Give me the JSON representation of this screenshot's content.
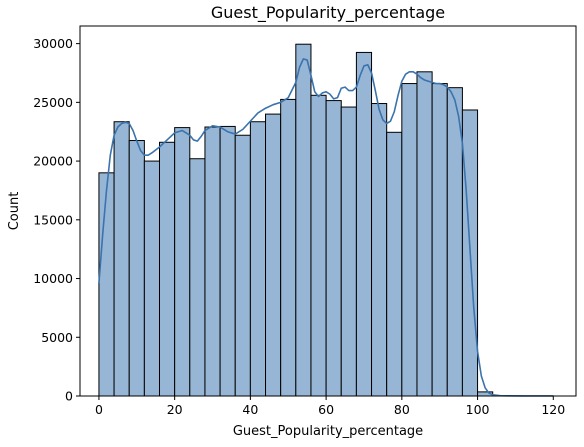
{
  "chart_data": {
    "type": "histogram",
    "title": "Guest_Popularity_percentage",
    "xlabel": "Guest_Popularity_percentage",
    "ylabel": "Count",
    "xlim": [
      -5,
      126
    ],
    "ylim": [
      0,
      31500
    ],
    "xticks": [
      0,
      20,
      40,
      60,
      80,
      100,
      120
    ],
    "xtick_labels": [
      "0",
      "20",
      "40",
      "60",
      "80",
      "100",
      "120"
    ],
    "yticks": [
      0,
      5000,
      10000,
      15000,
      20000,
      25000,
      30000
    ],
    "ytick_labels": [
      "0",
      "5000",
      "10000",
      "15000",
      "20000",
      "25000",
      "30000"
    ],
    "grid": false,
    "colors": {
      "bar_fill": "#97b6d6",
      "bar_edge": "#000000",
      "kde_line": "#3a73ad"
    },
    "bins": [
      {
        "x0": 0,
        "x1": 4,
        "count": 19000
      },
      {
        "x0": 4,
        "x1": 8,
        "count": 23350
      },
      {
        "x0": 8,
        "x1": 12,
        "count": 21750
      },
      {
        "x0": 12,
        "x1": 16,
        "count": 20000
      },
      {
        "x0": 16,
        "x1": 20,
        "count": 21600
      },
      {
        "x0": 20,
        "x1": 24,
        "count": 22850
      },
      {
        "x0": 24,
        "x1": 28,
        "count": 20200
      },
      {
        "x0": 28,
        "x1": 32,
        "count": 22900
      },
      {
        "x0": 32,
        "x1": 36,
        "count": 22950
      },
      {
        "x0": 36,
        "x1": 40,
        "count": 22200
      },
      {
        "x0": 40,
        "x1": 44,
        "count": 23350
      },
      {
        "x0": 44,
        "x1": 48,
        "count": 24000
      },
      {
        "x0": 48,
        "x1": 52,
        "count": 25250
      },
      {
        "x0": 52,
        "x1": 56,
        "count": 29950
      },
      {
        "x0": 56,
        "x1": 60,
        "count": 25600
      },
      {
        "x0": 60,
        "x1": 64,
        "count": 25150
      },
      {
        "x0": 64,
        "x1": 68,
        "count": 24600
      },
      {
        "x0": 68,
        "x1": 72,
        "count": 29250
      },
      {
        "x0": 72,
        "x1": 76,
        "count": 24900
      },
      {
        "x0": 76,
        "x1": 80,
        "count": 22450
      },
      {
        "x0": 80,
        "x1": 84,
        "count": 26600
      },
      {
        "x0": 84,
        "x1": 88,
        "count": 27600
      },
      {
        "x0": 88,
        "x1": 92,
        "count": 26600
      },
      {
        "x0": 92,
        "x1": 96,
        "count": 26250
      },
      {
        "x0": 96,
        "x1": 100,
        "count": 24350
      },
      {
        "x0": 100,
        "x1": 104,
        "count": 350
      },
      {
        "x0": 104,
        "x1": 108,
        "count": 30
      },
      {
        "x0": 108,
        "x1": 112,
        "count": 10
      },
      {
        "x0": 112,
        "x1": 116,
        "count": 5
      },
      {
        "x0": 116,
        "x1": 120,
        "count": 5
      }
    ],
    "kde": {
      "x": [
        0,
        1,
        2,
        3,
        4,
        5,
        6,
        7,
        8,
        9,
        10,
        11,
        12,
        13,
        14,
        16,
        18,
        20,
        22,
        24,
        25,
        26,
        27,
        28,
        30,
        32,
        34,
        36,
        38,
        40,
        42,
        44,
        46,
        48,
        50,
        52,
        53,
        54,
        55,
        56,
        57,
        58,
        59,
        60,
        61,
        62,
        63,
        64,
        65,
        66,
        67,
        68,
        69,
        70,
        71,
        72,
        73,
        74,
        75,
        76,
        77,
        78,
        79,
        80,
        81,
        82,
        83,
        84,
        85,
        86,
        87,
        88,
        89,
        90,
        91,
        92,
        93,
        94,
        95,
        96,
        97,
        98,
        99,
        100,
        101,
        102,
        103,
        104,
        106,
        108,
        112,
        116,
        120
      ],
      "y": [
        9600,
        13800,
        17500,
        20500,
        22200,
        22900,
        23200,
        23300,
        23200,
        22600,
        21700,
        20900,
        20500,
        20500,
        20700,
        21200,
        21800,
        22400,
        22600,
        22200,
        21800,
        21700,
        22100,
        22600,
        23000,
        22900,
        22500,
        22300,
        22700,
        23400,
        24100,
        24500,
        24800,
        25000,
        25400,
        26700,
        28000,
        28700,
        28600,
        27300,
        25900,
        25500,
        25800,
        25900,
        25700,
        25300,
        25400,
        26200,
        26300,
        26000,
        26000,
        26300,
        27300,
        28100,
        28200,
        27500,
        26000,
        24400,
        23500,
        23200,
        23400,
        24200,
        25600,
        26800,
        27400,
        27600,
        27600,
        27400,
        27100,
        26900,
        26800,
        26700,
        26600,
        26600,
        26500,
        26300,
        25900,
        25200,
        23800,
        21500,
        17500,
        12500,
        7500,
        3800,
        1700,
        700,
        250,
        100,
        30,
        12,
        5,
        3,
        2
      ]
    }
  }
}
